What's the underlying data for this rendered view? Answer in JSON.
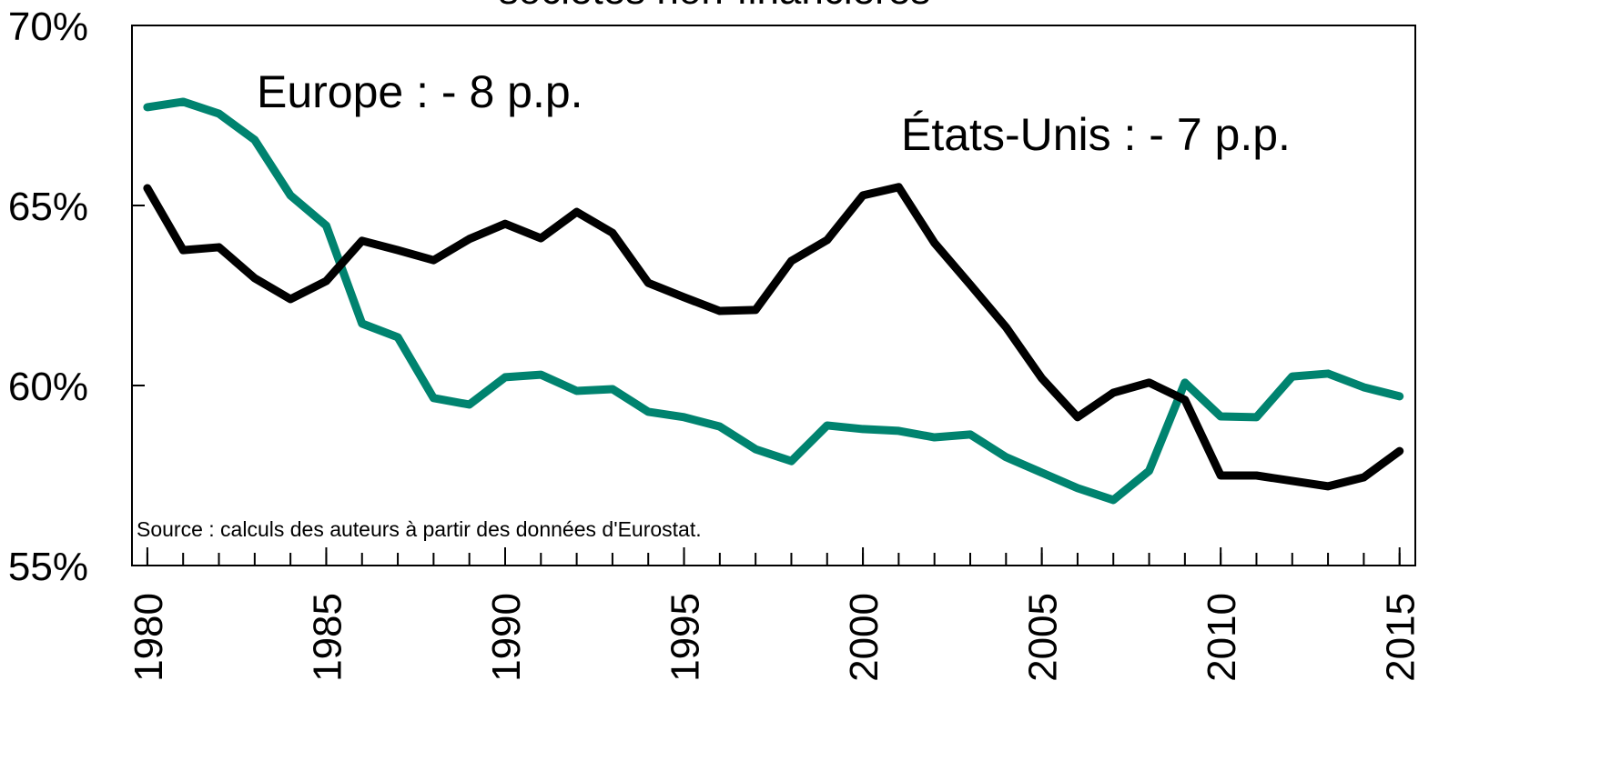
{
  "chart_data": {
    "type": "line",
    "title": "sociétés non-financières",
    "x": [
      1980,
      1981,
      1982,
      1983,
      1984,
      1985,
      1986,
      1987,
      1988,
      1989,
      1990,
      1991,
      1992,
      1993,
      1994,
      1995,
      1996,
      1997,
      1998,
      1999,
      2000,
      2001,
      2002,
      2003,
      2004,
      2005,
      2006,
      2007,
      2008,
      2009,
      2010,
      2011,
      2012,
      2013,
      2014,
      2015
    ],
    "series": [
      {
        "name": "Europe : - 8 p.p.",
        "color": "#00836f",
        "values": [
          67.73,
          67.88,
          67.55,
          66.82,
          65.28,
          64.44,
          61.72,
          61.34,
          59.65,
          59.47,
          60.23,
          60.3,
          59.85,
          59.9,
          59.27,
          59.12,
          58.86,
          58.23,
          57.9,
          58.89,
          58.79,
          58.74,
          58.56,
          58.64,
          58.01,
          57.58,
          57.15,
          56.82,
          57.63,
          60.08,
          59.14,
          59.12,
          60.25,
          60.33,
          59.95,
          59.7
        ]
      },
      {
        "name": "États-Unis : - 7 p.p.",
        "color": "#000000",
        "values": [
          65.48,
          63.76,
          63.84,
          62.98,
          62.4,
          62.9,
          64.02,
          63.76,
          63.48,
          64.07,
          64.49,
          64.09,
          64.82,
          64.24,
          62.85,
          62.45,
          62.07,
          62.1,
          63.46,
          64.04,
          65.28,
          65.51,
          63.96,
          62.8,
          61.62,
          60.2,
          59.12,
          59.8,
          60.08,
          59.6,
          57.5,
          57.5,
          57.35,
          57.2,
          57.45,
          58.18
        ]
      }
    ],
    "xlim": [
      1979.57,
      2015.44
    ],
    "xticks": [
      1980,
      1985,
      1990,
      1995,
      2000,
      2005,
      2010,
      2015
    ],
    "ylim": [
      55,
      70
    ],
    "yticks": [
      {
        "value": 55,
        "label": "55%"
      },
      {
        "value": 60,
        "label": "60%"
      },
      {
        "value": 65,
        "label": "65%"
      },
      {
        "value": 70,
        "label": "70%"
      }
    ],
    "annotations": [
      "Source : calculs des auteurs à partir des données d'Eurostat."
    ]
  }
}
